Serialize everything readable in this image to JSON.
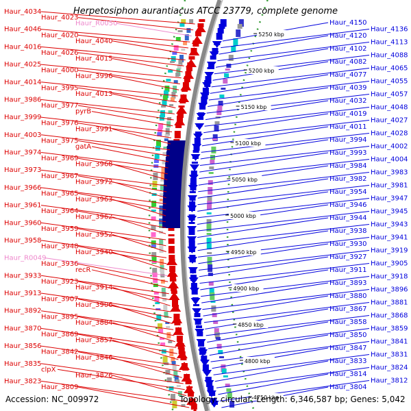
{
  "title": "Herpetosiphon aurantiacus ATCC 23779, complete genome",
  "accession": "Accession: NC_009972",
  "topology": "Topology: circular; Length: 6,346,587 bp; Genes: 5,042",
  "colors": {
    "forward": "#dd0000",
    "reverse": "#0000dd",
    "rna": "#ee88cc",
    "backbone": "#888888",
    "ticks": "#339933"
  },
  "scale_ticks": [
    "5250 kbp",
    "5200 kbp",
    "5150 kbp",
    "5100 kbp",
    "5050 kbp",
    "5000 kbp",
    "4950 kbp",
    "4900 kbp",
    "4850 kbp",
    "4800 kbp",
    "4750 kbp"
  ],
  "left_labels": [
    {
      "t": "Haur_4034",
      "c": "red"
    },
    {
      "t": "Haur_4023",
      "c": "red"
    },
    {
      "t": "Haur_R0050",
      "c": "pink"
    },
    {
      "t": "Haur_4046",
      "c": "red"
    },
    {
      "t": "Haur_4020",
      "c": "red"
    },
    {
      "t": "Haur_4040",
      "c": "red"
    },
    {
      "t": "Haur_4016",
      "c": "red"
    },
    {
      "t": "Haur_4026",
      "c": "red"
    },
    {
      "t": "Haur_4015",
      "c": "red"
    },
    {
      "t": "Haur_4025",
      "c": "red"
    },
    {
      "t": "Haur_4000",
      "c": "red"
    },
    {
      "t": "Haur_3996",
      "c": "red"
    },
    {
      "t": "Haur_4014",
      "c": "red"
    },
    {
      "t": "Haur_3995",
      "c": "red"
    },
    {
      "t": "Haur_4013",
      "c": "red"
    },
    {
      "t": "Haur_3986",
      "c": "red"
    },
    {
      "t": "Haur_3977",
      "c": "red"
    },
    {
      "t": "pyrB",
      "c": "red"
    },
    {
      "t": "Haur_3999",
      "c": "red"
    },
    {
      "t": "Haur_3976",
      "c": "red"
    },
    {
      "t": "Haur_3991",
      "c": "red"
    },
    {
      "t": "Haur_4003",
      "c": "red"
    },
    {
      "t": "Haur_3975",
      "c": "red"
    },
    {
      "t": "gatA",
      "c": "red"
    },
    {
      "t": "Haur_3974",
      "c": "red"
    },
    {
      "t": "Haur_3969",
      "c": "red"
    },
    {
      "t": "Haur_3968",
      "c": "red"
    },
    {
      "t": "Haur_3973",
      "c": "red"
    },
    {
      "t": "Haur_3967",
      "c": "red"
    },
    {
      "t": "Haur_3972",
      "c": "red"
    },
    {
      "t": "Haur_3966",
      "c": "red"
    },
    {
      "t": "Haur_3965",
      "c": "red"
    },
    {
      "t": "Haur_3963",
      "c": "red"
    },
    {
      "t": "Haur_3961",
      "c": "red"
    },
    {
      "t": "Haur_3964",
      "c": "red"
    },
    {
      "t": "Haur_3962",
      "c": "red"
    },
    {
      "t": "Haur_3960",
      "c": "red"
    },
    {
      "t": "Haur_3959",
      "c": "red"
    },
    {
      "t": "Haur_3952",
      "c": "red"
    },
    {
      "t": "Haur_3958",
      "c": "red"
    },
    {
      "t": "Haur_3948",
      "c": "red"
    },
    {
      "t": "Haur_3940",
      "c": "red"
    },
    {
      "t": "Haur_R0049",
      "c": "pink"
    },
    {
      "t": "Haur_3936",
      "c": "red"
    },
    {
      "t": "recR",
      "c": "red"
    },
    {
      "t": "Haur_3933",
      "c": "red"
    },
    {
      "t": "Haur_3923",
      "c": "red"
    },
    {
      "t": "Haur_3914",
      "c": "red"
    },
    {
      "t": "Haur_3913",
      "c": "red"
    },
    {
      "t": "Haur_3907",
      "c": "red"
    },
    {
      "t": "Haur_3906",
      "c": "red"
    },
    {
      "t": "Haur_3892",
      "c": "red"
    },
    {
      "t": "Haur_3895",
      "c": "red"
    },
    {
      "t": "Haur_3884",
      "c": "red"
    },
    {
      "t": "Haur_3870",
      "c": "red"
    },
    {
      "t": "Haur_3869",
      "c": "red"
    },
    {
      "t": "Haur_3857",
      "c": "red"
    },
    {
      "t": "Haur_3856",
      "c": "red"
    },
    {
      "t": "Haur_3842",
      "c": "red"
    },
    {
      "t": "Haur_3846",
      "c": "red"
    },
    {
      "t": "Haur_3835",
      "c": "red"
    },
    {
      "t": "clpX",
      "c": "red"
    },
    {
      "t": "Haur_3826",
      "c": "red"
    },
    {
      "t": "Haur_3823",
      "c": "red"
    },
    {
      "t": "Haur_3809",
      "c": "red"
    }
  ],
  "right_labels": [
    "Haur_4150",
    "Haur_4136",
    "Haur_4120",
    "Haur_4113",
    "Haur_4102",
    "Haur_4088",
    "Haur_4082",
    "Haur_4065",
    "Haur_4077",
    "Haur_4055",
    "Haur_4039",
    "Haur_4057",
    "Haur_4032",
    "Haur_4048",
    "Haur_4019",
    "Haur_4027",
    "Haur_4011",
    "Haur_4028",
    "Haur_3994",
    "Haur_4002",
    "Haur_3993",
    "Haur_4004",
    "Haur_3984",
    "Haur_3983",
    "Haur_3982",
    "Haur_3981",
    "Haur_3954",
    "Haur_3947",
    "Haur_3946",
    "Haur_3945",
    "Haur_3944",
    "Haur_3943",
    "Haur_3938",
    "Haur_3941",
    "Haur_3930",
    "Haur_3919",
    "Haur_3927",
    "Haur_3905",
    "Haur_3911",
    "Haur_3918",
    "Haur_3893",
    "Haur_3896",
    "Haur_3880",
    "Haur_3881",
    "Haur_3867",
    "Haur_3868",
    "Haur_3858",
    "Haur_3859",
    "Haur_3850",
    "Haur_3841",
    "Haur_3847",
    "Haur_3831",
    "Haur_3833",
    "Haur_3824",
    "Haur_3814",
    "Haur_3812",
    "Haur_3804"
  ]
}
